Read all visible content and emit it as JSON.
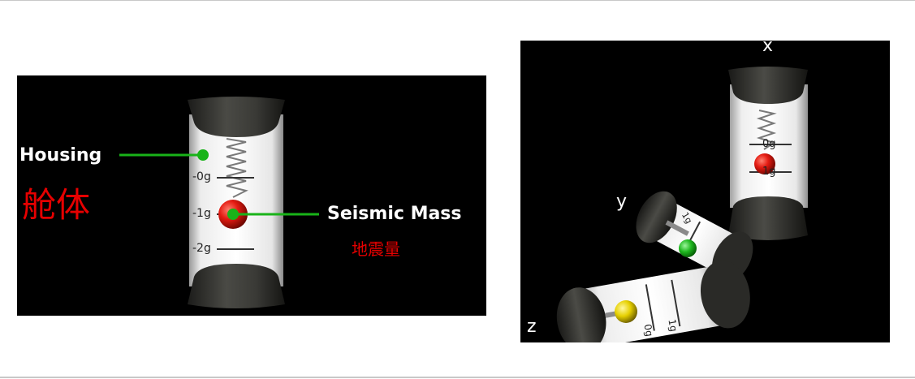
{
  "left_diagram": {
    "housing_label": "Housing",
    "housing_label_cn": "舱体",
    "mass_label": "Seismic Mass",
    "mass_label_cn": "地震量",
    "scale_marks": [
      "-0g",
      "-1g",
      "-2g"
    ],
    "colors": {
      "leader": "#19b319",
      "mass": "#e41b12",
      "label_cn": "#e60000"
    }
  },
  "right_diagram": {
    "axes": [
      "x",
      "y",
      "z"
    ],
    "x_scale_marks": [
      "0g",
      "1g"
    ],
    "y_scale_marks": [
      "1g"
    ],
    "z_scale_marks": [
      "0g",
      "1g"
    ],
    "mass_colors": {
      "x": "#e41b12",
      "y": "#1fb81f",
      "z": "#e6d000"
    }
  }
}
